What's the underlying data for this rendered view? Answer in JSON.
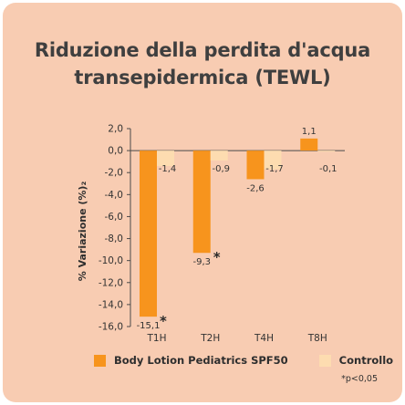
{
  "title_line1": "Riduzione della perdita d'acqua",
  "title_line2": "transepidermica (TEWL)",
  "footnote": "*p<0,05",
  "colors": {
    "background": "#f8ccb2",
    "series_primary": "#f7941d",
    "series_control": "#fddcb0",
    "text": "#3f3f3f"
  },
  "chart_data": {
    "type": "bar",
    "title": "Riduzione della perdita d'acqua transepidermica (TEWL)",
    "categories": [
      "T1H",
      "T2H",
      "T4H",
      "T8H"
    ],
    "ylabel": "% Variazione (%)₂",
    "ylim": [
      -16,
      2
    ],
    "yticks": [
      2,
      0,
      -2,
      -4,
      -6,
      -8,
      -10,
      -12,
      -14,
      -16
    ],
    "ytick_labels": [
      "2,0",
      "0,0",
      "-2,0",
      "-4,0",
      "-6,0",
      "-8,0",
      "-10,0",
      "-12,0",
      "-14,0",
      "-16,0"
    ],
    "grid": false,
    "legend_position": "bottom",
    "series": [
      {
        "name": "Body Lotion Pediatrics SPF50",
        "values": [
          -15.1,
          -9.3,
          -2.6,
          1.1
        ],
        "labels": [
          "-15,1",
          "-9,3",
          "-2,6",
          "1,1"
        ],
        "significant": [
          true,
          true,
          false,
          false
        ]
      },
      {
        "name": "Controllo",
        "values": [
          -1.4,
          -0.9,
          -1.7,
          -0.1
        ],
        "labels": [
          "-1,4",
          "-0,9",
          "-1,7",
          "-0,1"
        ],
        "significant": [
          false,
          false,
          false,
          false
        ]
      }
    ],
    "significance_marker": "*"
  }
}
